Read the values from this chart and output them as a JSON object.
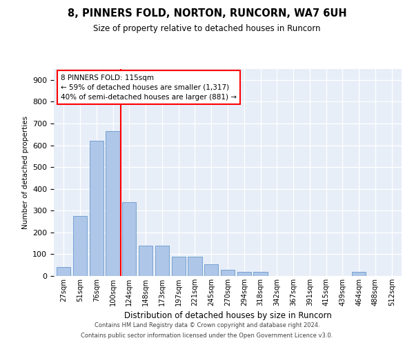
{
  "title1": "8, PINNERS FOLD, NORTON, RUNCORN, WA7 6UH",
  "title2": "Size of property relative to detached houses in Runcorn",
  "xlabel": "Distribution of detached houses by size in Runcorn",
  "ylabel": "Number of detached properties",
  "bar_color": "#aec6e8",
  "bar_edge_color": "#6699cc",
  "bar_values": [
    40,
    275,
    620,
    665,
    340,
    140,
    140,
    90,
    90,
    55,
    30,
    20,
    20,
    0,
    0,
    0,
    0,
    0,
    20,
    0,
    0
  ],
  "categories": [
    "27sqm",
    "51sqm",
    "76sqm",
    "100sqm",
    "124sqm",
    "148sqm",
    "173sqm",
    "197sqm",
    "221sqm",
    "245sqm",
    "270sqm",
    "294sqm",
    "318sqm",
    "342sqm",
    "367sqm",
    "391sqm",
    "415sqm",
    "439sqm",
    "464sqm",
    "488sqm",
    "512sqm"
  ],
  "vline_x": 3.5,
  "vline_color": "red",
  "annotation_text": "8 PINNERS FOLD: 115sqm\n← 59% of detached houses are smaller (1,317)\n40% of semi-detached houses are larger (881) →",
  "annotation_box_color": "white",
  "annotation_box_edge": "red",
  "ylim": [
    0,
    950
  ],
  "yticks": [
    0,
    100,
    200,
    300,
    400,
    500,
    600,
    700,
    800,
    900
  ],
  "footer1": "Contains HM Land Registry data © Crown copyright and database right 2024.",
  "footer2": "Contains public sector information licensed under the Open Government Licence v3.0.",
  "plot_bg": "#e8eef8"
}
